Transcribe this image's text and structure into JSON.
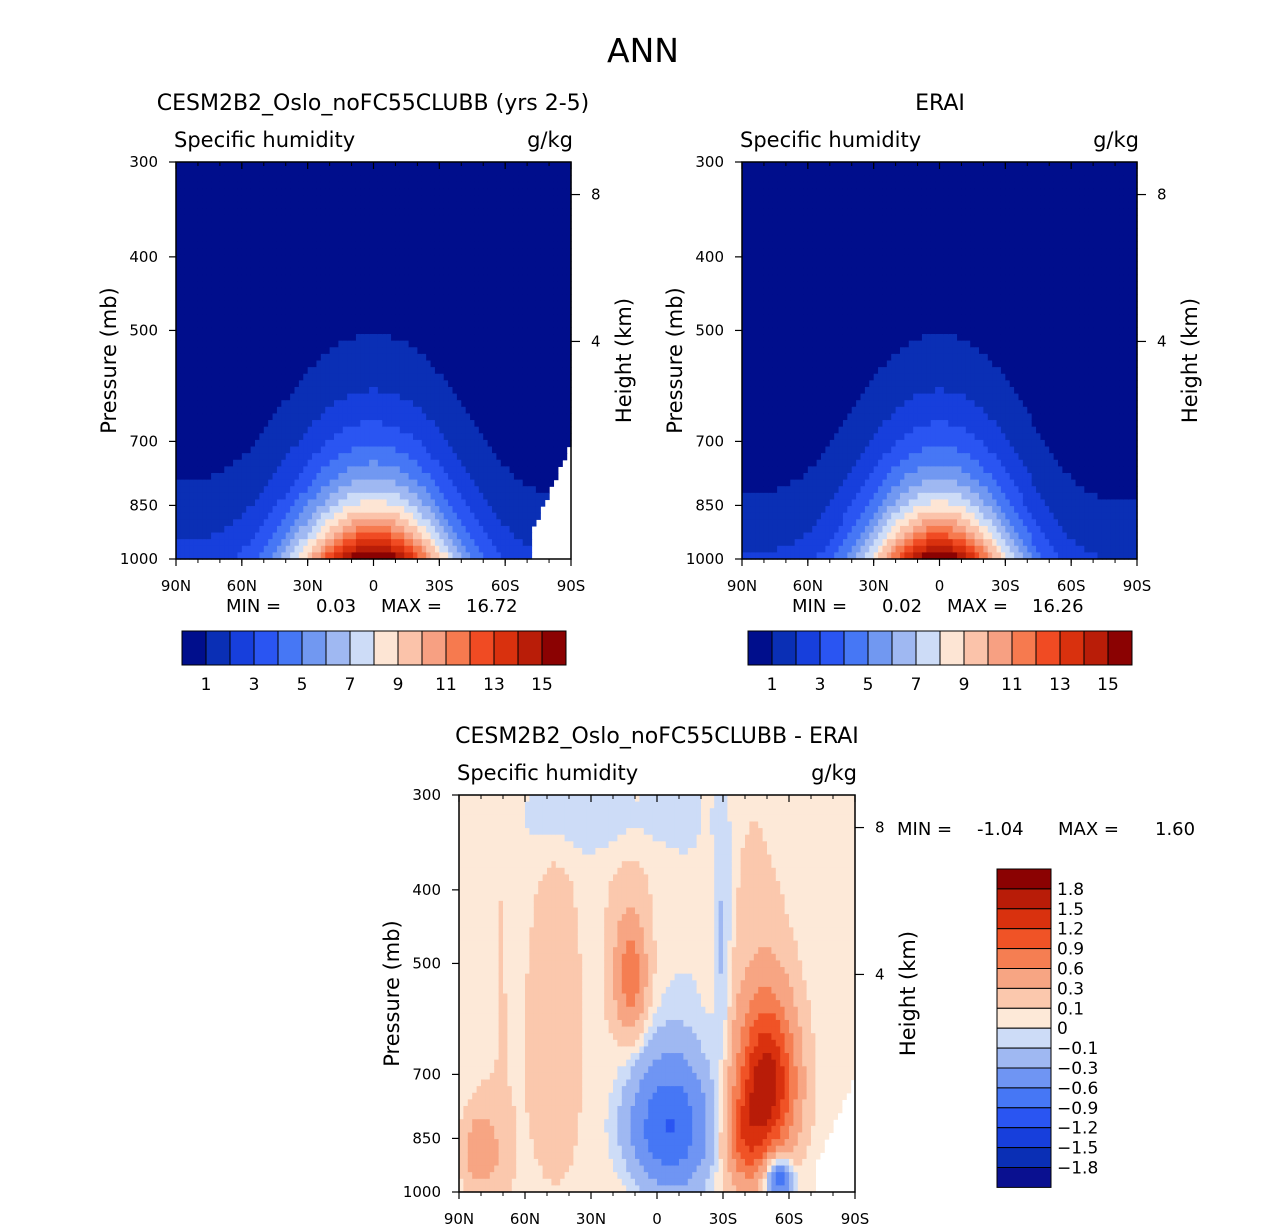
{
  "page_title": "ANN",
  "colors": {
    "abs_levels": [
      "#000e8c",
      "#0a2fb5",
      "#173fdc",
      "#2a55f2",
      "#4677f5",
      "#7198f1",
      "#9fb8f2",
      "#cddcf7",
      "#fde5d4",
      "#fbc3aa",
      "#f7a082",
      "#f67a4f",
      "#f04b23",
      "#d9310e",
      "#b91d08",
      "#8b0202"
    ],
    "diff_levels": [
      "#0a1090",
      "#0a2fb5",
      "#173fdc",
      "#2a55f2",
      "#4677f5",
      "#6f95f3",
      "#9fb8f2",
      "#cddcf7",
      "#fde9d8",
      "#fbc8ad",
      "#f7a583",
      "#f57e52",
      "#f05326",
      "#d9310e",
      "#b81c08",
      "#8b0202"
    ]
  },
  "chart_data": [
    {
      "type": "heatmap",
      "id": "model",
      "title": "CESM2B2_Oslo_noFC55CLUBB (yrs 2-5)",
      "variable": "Specific humidity",
      "units": "g/kg",
      "ylabel": "Pressure (mb)",
      "y2label": "Height (km)",
      "xticks": [
        "90N",
        "60N",
        "30N",
        "0",
        "30S",
        "60S",
        "90S"
      ],
      "yticks": [
        "300",
        "400",
        "500",
        "700",
        "850",
        "1000"
      ],
      "yticks2": [
        "8",
        "4"
      ],
      "ylim": [
        1000,
        300
      ],
      "xlim": [
        90,
        -90
      ],
      "min_label": "MIN =",
      "min_value": "0.03",
      "max_label": "MAX =",
      "max_value": "16.72",
      "field": {
        "peak": 16.7,
        "center_lat": 0,
        "width_lat": 36,
        "surface_decay": 0.68,
        "edge_north": 2.4,
        "edge_south": 2.0,
        "top_value": 0.3
      },
      "colorbar": {
        "levels": [
          "1",
          "3",
          "5",
          "7",
          "9",
          "11",
          "13",
          "15"
        ],
        "bounds": [
          1,
          2,
          3,
          4,
          5,
          6,
          7,
          8,
          9,
          10,
          11,
          12,
          13,
          14,
          15
        ]
      }
    },
    {
      "type": "heatmap",
      "id": "obs",
      "title": "ERAI",
      "variable": "Specific humidity",
      "units": "g/kg",
      "ylabel": "Pressure (mb)",
      "y2label": "Height (km)",
      "xticks": [
        "90N",
        "60N",
        "30N",
        "0",
        "30S",
        "60S",
        "90S"
      ],
      "yticks": [
        "300",
        "400",
        "500",
        "700",
        "850",
        "1000"
      ],
      "yticks2": [
        "8",
        "4"
      ],
      "ylim": [
        1000,
        300
      ],
      "xlim": [
        90,
        -90
      ],
      "min_label": "MIN =",
      "min_value": "0.02",
      "max_label": "MAX =",
      "max_value": "16.26",
      "field": {
        "peak": 16.3,
        "center_lat": 0,
        "width_lat": 34,
        "surface_decay": 0.7,
        "edge_north": 2.1,
        "edge_south": 1.9,
        "top_value": 0.3
      },
      "colorbar": {
        "levels": [
          "1",
          "3",
          "5",
          "7",
          "9",
          "11",
          "13",
          "15"
        ],
        "bounds": [
          1,
          2,
          3,
          4,
          5,
          6,
          7,
          8,
          9,
          10,
          11,
          12,
          13,
          14,
          15
        ]
      }
    },
    {
      "type": "heatmap",
      "id": "diff",
      "title": "CESM2B2_Oslo_noFC55CLUBB - ERAI",
      "variable": "Specific humidity",
      "units": "g/kg",
      "ylabel": "Pressure (mb)",
      "y2label": "Height (km)",
      "xticks": [
        "90N",
        "60N",
        "30N",
        "0",
        "30S",
        "60S",
        "90S"
      ],
      "yticks": [
        "300",
        "400",
        "500",
        "700",
        "850",
        "1000"
      ],
      "yticks2": [
        "8",
        "4"
      ],
      "ylim": [
        1000,
        300
      ],
      "xlim": [
        90,
        -90
      ],
      "min_label": "MIN =",
      "min_value": "-1.04",
      "max_label": "MAX =",
      "max_value": "1.60",
      "blobs": [
        {
          "lat": -50,
          "p": 720,
          "dlat": 13,
          "dp": 170,
          "amp": 1.6
        },
        {
          "lat": -40,
          "p": 860,
          "dlat": 9,
          "dp": 120,
          "amp": 0.7
        },
        {
          "lat": 12,
          "p": 520,
          "dlat": 7,
          "dp": 90,
          "amp": 0.7
        },
        {
          "lat": 80,
          "p": 880,
          "dlat": 8,
          "dp": 90,
          "amp": 0.5
        },
        {
          "lat": 45,
          "p": 650,
          "dlat": 10,
          "dp": 300,
          "amp": 0.25
        },
        {
          "lat": -5,
          "p": 820,
          "dlat": 18,
          "dp": 160,
          "amp": -0.95
        },
        {
          "lat": -55,
          "p": 960,
          "dlat": 6,
          "dp": 60,
          "amp": -1.0
        },
        {
          "lat": 30,
          "p": 320,
          "dlat": 40,
          "dp": 40,
          "amp": -0.15
        },
        {
          "lat": -30,
          "p": 500,
          "dlat": 4,
          "dp": 250,
          "amp": -0.2
        }
      ],
      "colorbar": {
        "labels": [
          "1.8",
          "1.5",
          "1.2",
          "0.9",
          "0.6",
          "0.3",
          "0.1",
          "0",
          "−0.1",
          "−0.3",
          "−0.6",
          "−0.9",
          "−1.2",
          "−1.5",
          "−1.8"
        ],
        "bounds": [
          -1.8,
          -1.5,
          -1.2,
          -0.9,
          -0.6,
          -0.3,
          -0.1,
          0,
          0.1,
          0.3,
          0.6,
          0.9,
          1.2,
          1.5,
          1.8
        ]
      }
    }
  ]
}
